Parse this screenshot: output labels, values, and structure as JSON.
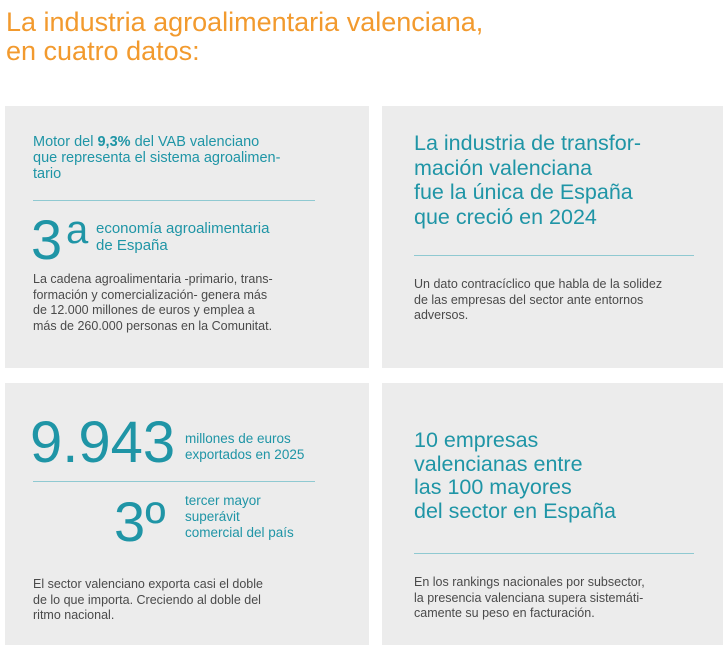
{
  "header": {
    "title_lines": [
      "La industria agroalimentaria valenciana,",
      "en cuatro datos:"
    ]
  },
  "cards": [
    {
      "intro": {
        "before": "Motor del",
        "highlight": "9,3%",
        "after": "del VAB valenciano",
        "more_lines": [
          "que representa el sistema agroalimen-",
          "tario"
        ]
      },
      "rank": {
        "number": "3",
        "suffix": "a",
        "label_lines": [
          "economía agroalimentaria",
          "de España"
        ]
      },
      "body_lines": [
        "La cadena agroalimentaria -primario, trans-",
        "formación y comercialización- genera más",
        "de 12.000 millones de euros y emplea a",
        "más de 260.000 personas en la Comunitat."
      ]
    },
    {
      "headline_lines": [
        "La industria de transfor-",
        "mación valenciana",
        "fue la única de España",
        "que creció en 2024"
      ],
      "body_lines": [
        "Un dato contracíclico que habla de la solidez",
        "de las empresas del sector ante entornos",
        "adversos."
      ]
    },
    {
      "figure": {
        "number": "9.943",
        "label_lines": [
          "millones de euros",
          "exportados en 2025"
        ]
      },
      "rank": {
        "number": "3º",
        "label_lines": [
          "tercer mayor",
          "superávit",
          "comercial del país"
        ]
      },
      "body_lines": [
        "El sector valenciano exporta casi el doble",
        "de lo que importa. Creciendo al doble del",
        "ritmo nacional."
      ]
    },
    {
      "headline_lines": [
        "10 empresas",
        "valencianas entre",
        "las 100 mayores",
        "del sector en España"
      ],
      "body_lines": [
        "En los rankings nacionales por subsector,",
        "la presencia valenciana supera sistemáti-",
        "camente su peso en facturación."
      ]
    }
  ]
}
